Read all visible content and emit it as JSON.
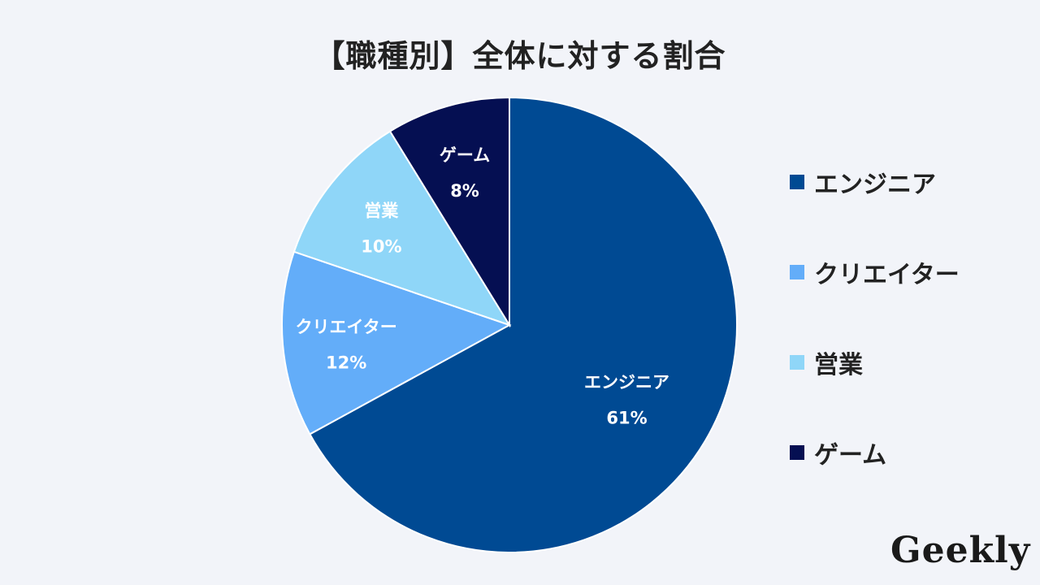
{
  "chart_data": {
    "type": "pie",
    "title": "【職種別】全体に対する割合",
    "slices": [
      {
        "label": "エンジニア",
        "value": 61,
        "display": "61%",
        "color": "#004a93"
      },
      {
        "label": "クリエイター",
        "value": 12,
        "display": "12%",
        "color": "#63adf9"
      },
      {
        "label": "営業",
        "value": 10,
        "display": "10%",
        "color": "#8fd6f8"
      },
      {
        "label": "ゲーム",
        "value": 8,
        "display": "8%",
        "color": "#050f52"
      }
    ],
    "legend": {
      "placement": "right"
    }
  },
  "logo": "Geekly"
}
